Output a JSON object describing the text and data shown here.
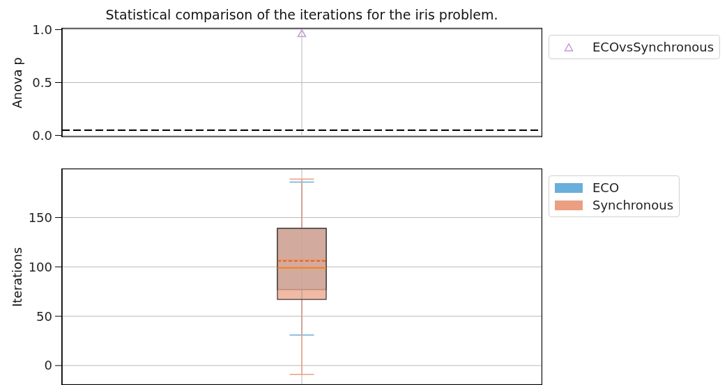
{
  "chart_data": [
    {
      "type": "scatter",
      "title": "Statistical comparison of the iterations for the iris problem.",
      "ylabel": "Anova p",
      "categories": [
        null
      ],
      "series": [
        {
          "name": "ECOvsSynchronous",
          "color": "#c39bd3",
          "values": [
            0.96
          ]
        }
      ],
      "ylim": [
        -0.01,
        1.01
      ],
      "yticks": [
        {
          "value": 0,
          "label": "0.0"
        },
        0.5,
        {
          "value": 1,
          "label": "1.0"
        }
      ],
      "ref_lines": [
        {
          "axis": "y",
          "value": 0.05,
          "color": "#000000",
          "line_style": "dashed"
        }
      ],
      "grid": true,
      "legend": "top right",
      "marker": "triangle"
    },
    {
      "type": "box",
      "ylabel": "Iterations",
      "categories": [
        null
      ],
      "series": [
        {
          "name": "ECO",
          "color": "#6aaedb",
          "boxes": [
            {
              "low": 31,
              "q1": 77,
              "median": 107,
              "q3": 139,
              "high": 186,
              "mean": 106
            }
          ]
        },
        {
          "name": "Synchronous",
          "color": "#eb9f82",
          "boxes": [
            {
              "low": -9,
              "q1": 67,
              "median": 99,
              "q3": 139,
              "high": 189,
              "mean": 106
            }
          ]
        }
      ],
      "ylim": [
        -19,
        199
      ],
      "yticks": [
        0,
        50,
        100,
        150
      ],
      "grid": true,
      "legend": "top right"
    }
  ]
}
